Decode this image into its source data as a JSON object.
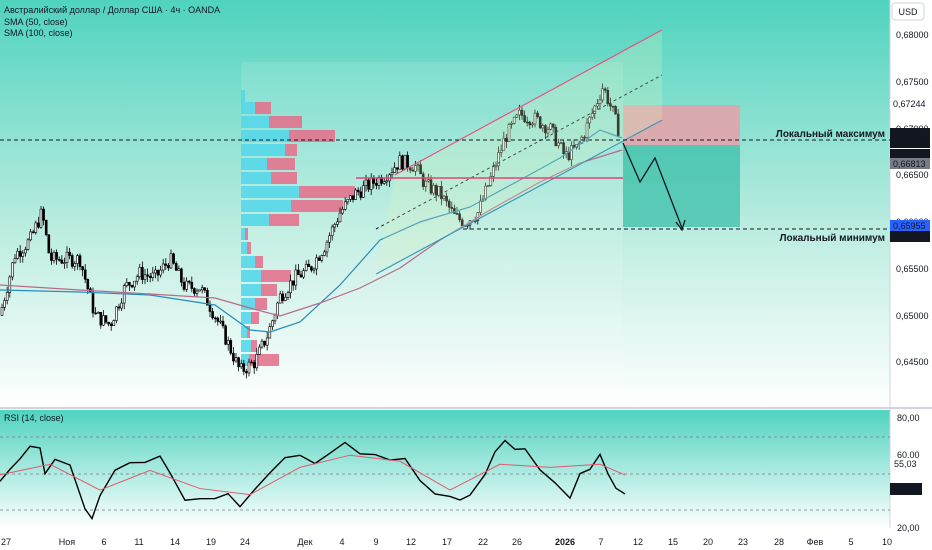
{
  "header": {
    "title": "Австралийский доллар / Доллар США · 4ч · OANDA",
    "indicators": [
      "SMA (50, close)",
      "SMA (100, close)"
    ],
    "currency_button": "USD"
  },
  "colors": {
    "bg_top": "#4fd3bf",
    "bg_bottom": "#ffffff",
    "up": "#000000",
    "sma50": "#2a8cb8",
    "sma100": "#b86a8a",
    "channel": "#e8407a",
    "volume_up": "#3fd2e6",
    "volume_down": "#e0607e",
    "stop_zone": "#e7a0a8",
    "target_zone": "#3cbfa8",
    "rsi": "#000000",
    "rsi_ma": "#e05a70"
  },
  "main_axis": {
    "ticks": [
      "0,68000",
      "0,67500",
      "0,67000",
      "0,66500",
      "0,66000",
      "0,65500",
      "0,65000",
      "0,64500"
    ],
    "price_labels": [
      {
        "text": "0,67244",
        "kind": "pink"
      },
      {
        "text": "0,66932",
        "kind": "black"
      },
      {
        "text": "03:40:42",
        "kind": "black"
      },
      {
        "text": "0,66880",
        "kind": "black"
      },
      {
        "text": "0,66813",
        "kind": "grey"
      },
      {
        "text": "0,65955",
        "kind": "blue"
      },
      {
        "text": "0,65935",
        "kind": "black"
      }
    ]
  },
  "annotations": {
    "local_max": "Локальный максимум",
    "local_min": "Локальный минимум"
  },
  "rsi_pane": {
    "title": "RSI (14, close)",
    "ticks": [
      "80,00",
      "60,00",
      "20,00"
    ],
    "labels": [
      {
        "text": "55,03",
        "kind": "pink"
      },
      {
        "text": "41,14",
        "kind": "black"
      }
    ]
  },
  "time_axis": [
    "27",
    "Ноя",
    "6",
    "11",
    "14",
    "19",
    "24",
    "Дек",
    "4",
    "9",
    "12",
    "17",
    "22",
    "26",
    "2026",
    "7",
    "12",
    "15",
    "20",
    "23",
    "28",
    "Фев",
    "5",
    "10"
  ],
  "chart_data": {
    "type": "candlestick",
    "title": "Австралийский доллар / Доллар США · 4ч · OANDA",
    "series": [
      {
        "name": "AUD/USD close",
        "x": [
          "27",
          "Ноя",
          "6",
          "11",
          "14",
          "19",
          "24",
          "Дек",
          "4",
          "9",
          "12",
          "17",
          "22",
          "26",
          "2026",
          "7"
        ],
        "values": [
          0.656,
          0.6545,
          0.652,
          0.653,
          0.6545,
          0.6515,
          0.644,
          0.652,
          0.66,
          0.662,
          0.663,
          0.66,
          0.661,
          0.669,
          0.668,
          0.6693
        ]
      },
      {
        "name": "SMA (50, close)",
        "x": [
          "27",
          "14",
          "24",
          "Дек",
          "9",
          "17",
          "22",
          "26",
          "2026",
          "7"
        ],
        "values": [
          0.6545,
          0.653,
          0.6475,
          0.648,
          0.655,
          0.66,
          0.663,
          0.666,
          0.6675,
          0.669
        ]
      },
      {
        "name": "SMA (100, close)",
        "x": [
          "27",
          "14",
          "24",
          "Дек",
          "9",
          "17",
          "22",
          "26",
          "2026",
          "7"
        ],
        "values": [
          0.6545,
          0.6535,
          0.65,
          0.6515,
          0.6545,
          0.658,
          0.6615,
          0.6645,
          0.666,
          0.6681
        ]
      },
      {
        "name": "RSI (14, close)",
        "x": [
          "27",
          "Ноя",
          "6",
          "11",
          "14",
          "19",
          "24",
          "Дек",
          "4",
          "9",
          "12",
          "17",
          "22",
          "26",
          "2026",
          "7"
        ],
        "values": [
          58,
          72,
          30,
          62,
          68,
          45,
          55,
          58,
          72,
          75,
          62,
          38,
          45,
          75,
          55,
          41.14
        ]
      }
    ],
    "ylim": [
      0.6425,
      0.683
    ],
    "rsi_ylim": [
      20,
      80
    ],
    "levels": {
      "local_max": 0.66932,
      "local_min": 0.65935,
      "pink_label": 0.67244,
      "blue_label": 0.65955
    },
    "grid": false
  }
}
